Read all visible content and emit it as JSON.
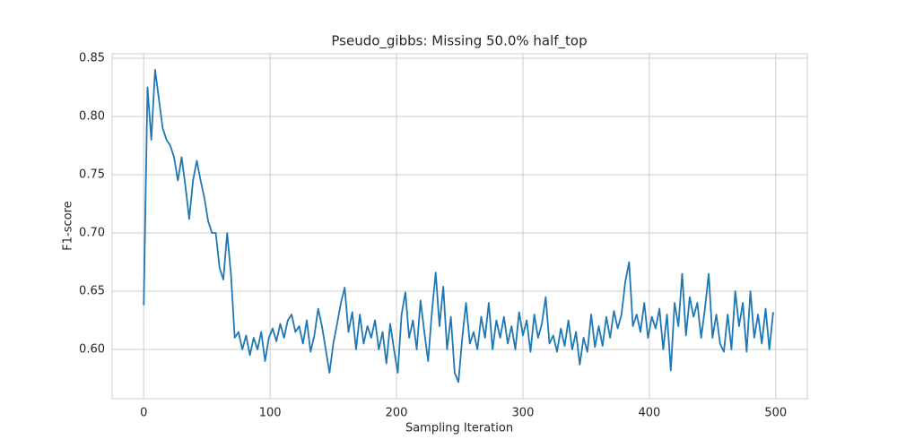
{
  "chart_data": {
    "type": "line",
    "title": "Pseudo_gibbs: Missing 50.0% half_top",
    "x_label": "Sampling Iteration",
    "y_label": "F1-score",
    "color": "#1f77b4",
    "grid": true,
    "xlim": [
      -25,
      525
    ],
    "ylim": [
      0.5577,
      0.8538
    ],
    "xticks": [
      0,
      100,
      200,
      300,
      400,
      500
    ],
    "yticks": [
      {
        "value": 0.6,
        "label": "0.60"
      },
      0.65,
      {
        "value": 0.7,
        "label": "0.70"
      },
      0.75,
      {
        "value": 0.8,
        "label": "0.80"
      },
      0.85
    ],
    "x": [
      0,
      3,
      6,
      9,
      12,
      15,
      18,
      21,
      24,
      27,
      30,
      33,
      36,
      39,
      42,
      45,
      48,
      51,
      54,
      57,
      60,
      63,
      66,
      69,
      72,
      75,
      78,
      81,
      84,
      87,
      90,
      93,
      96,
      99,
      102,
      105,
      108,
      111,
      114,
      117,
      120,
      123,
      126,
      129,
      132,
      135,
      138,
      141,
      144,
      147,
      150,
      153,
      156,
      159,
      162,
      165,
      168,
      171,
      174,
      177,
      180,
      183,
      186,
      189,
      192,
      195,
      198,
      201,
      204,
      207,
      210,
      213,
      216,
      219,
      222,
      225,
      228,
      231,
      234,
      237,
      240,
      243,
      246,
      249,
      252,
      255,
      258,
      261,
      264,
      267,
      270,
      273,
      276,
      279,
      282,
      285,
      288,
      291,
      294,
      297,
      300,
      303,
      306,
      309,
      312,
      315,
      318,
      321,
      324,
      327,
      330,
      333,
      336,
      339,
      342,
      345,
      348,
      351,
      354,
      357,
      360,
      363,
      366,
      369,
      372,
      375,
      378,
      381,
      384,
      387,
      390,
      393,
      396,
      399,
      402,
      405,
      408,
      411,
      414,
      417,
      420,
      423,
      426,
      429,
      432,
      435,
      438,
      441,
      444,
      447,
      450,
      453,
      456,
      459,
      462,
      465,
      468,
      471,
      474,
      477,
      480,
      483,
      486,
      489,
      492,
      495,
      498
    ],
    "values": [
      0.638,
      0.825,
      0.78,
      0.84,
      0.815,
      0.79,
      0.78,
      0.775,
      0.765,
      0.745,
      0.765,
      0.74,
      0.712,
      0.745,
      0.762,
      0.745,
      0.73,
      0.71,
      0.7,
      0.7,
      0.67,
      0.66,
      0.7,
      0.665,
      0.61,
      0.615,
      0.6,
      0.612,
      0.595,
      0.61,
      0.6,
      0.615,
      0.59,
      0.61,
      0.618,
      0.607,
      0.622,
      0.61,
      0.625,
      0.63,
      0.615,
      0.62,
      0.605,
      0.625,
      0.598,
      0.612,
      0.635,
      0.62,
      0.6,
      0.58,
      0.605,
      0.622,
      0.64,
      0.653,
      0.615,
      0.632,
      0.6,
      0.63,
      0.605,
      0.62,
      0.61,
      0.625,
      0.6,
      0.615,
      0.588,
      0.622,
      0.6,
      0.58,
      0.63,
      0.649,
      0.61,
      0.625,
      0.6,
      0.642,
      0.615,
      0.59,
      0.632,
      0.666,
      0.62,
      0.654,
      0.6,
      0.628,
      0.58,
      0.572,
      0.61,
      0.64,
      0.605,
      0.615,
      0.6,
      0.628,
      0.61,
      0.64,
      0.6,
      0.625,
      0.61,
      0.628,
      0.605,
      0.62,
      0.6,
      0.632,
      0.612,
      0.625,
      0.598,
      0.63,
      0.61,
      0.622,
      0.645,
      0.605,
      0.612,
      0.598,
      0.618,
      0.603,
      0.625,
      0.6,
      0.615,
      0.587,
      0.61,
      0.598,
      0.63,
      0.602,
      0.62,
      0.603,
      0.628,
      0.61,
      0.633,
      0.618,
      0.63,
      0.658,
      0.675,
      0.62,
      0.63,
      0.615,
      0.64,
      0.61,
      0.628,
      0.618,
      0.635,
      0.6,
      0.63,
      0.582,
      0.64,
      0.62,
      0.665,
      0.612,
      0.645,
      0.628,
      0.64,
      0.61,
      0.635,
      0.665,
      0.61,
      0.63,
      0.605,
      0.598,
      0.63,
      0.6,
      0.65,
      0.62,
      0.64,
      0.598,
      0.65,
      0.61,
      0.63,
      0.605,
      0.635,
      0.6,
      0.632
    ]
  }
}
